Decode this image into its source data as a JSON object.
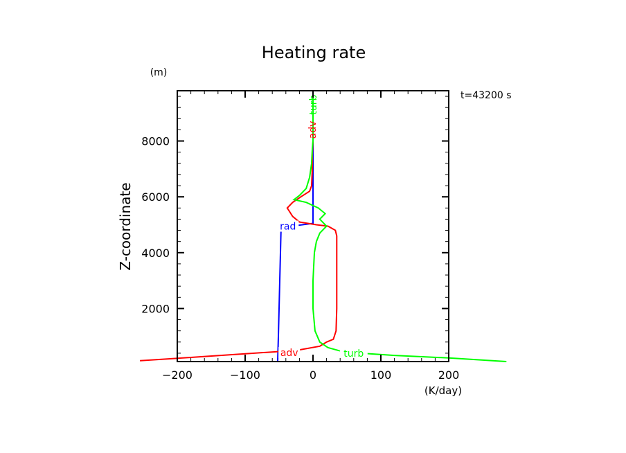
{
  "chart_data": {
    "type": "line",
    "title": "Heating rate",
    "xlabel": "(K/day)",
    "ylabel": "Z-coordinate",
    "yunit": "(m)",
    "annotation": "t=43200 s",
    "xlim": [
      -200,
      200
    ],
    "ylim": [
      100,
      9800
    ],
    "xticks": [
      -200,
      -100,
      0,
      100,
      200
    ],
    "xtick_labels": [
      "−200",
      "−100",
      "0",
      "100",
      "200"
    ],
    "yticks": [
      2000,
      4000,
      6000,
      8000
    ],
    "ytick_labels": [
      "2000",
      "4000",
      "6000",
      "8000"
    ],
    "grid": false,
    "series": [
      {
        "name": "rad",
        "label": "rad",
        "color": "#0000ff",
        "points": [
          [
            -52,
            100
          ],
          [
            -51,
            1000
          ],
          [
            -50,
            2000
          ],
          [
            -49,
            3000
          ],
          [
            -48,
            4000
          ],
          [
            -47,
            4900
          ],
          [
            0,
            5050
          ],
          [
            0,
            6000
          ],
          [
            0,
            7000
          ],
          [
            0,
            8000
          ],
          [
            0,
            9000
          ],
          [
            0,
            9800
          ]
        ],
        "label_at": [
          -37,
          4950
        ]
      },
      {
        "name": "adv",
        "label": "adv",
        "color": "#ff0000",
        "points": [
          [
            -255,
            130
          ],
          [
            -180,
            250
          ],
          [
            -100,
            380
          ],
          [
            -55,
            450
          ],
          [
            -20,
            520
          ],
          [
            10,
            650
          ],
          [
            20,
            800
          ],
          [
            30,
            900
          ],
          [
            34,
            1200
          ],
          [
            35,
            2000
          ],
          [
            35,
            3000
          ],
          [
            35,
            4000
          ],
          [
            35,
            4600
          ],
          [
            33,
            4800
          ],
          [
            22,
            4950
          ],
          [
            5,
            5000
          ],
          [
            -20,
            5100
          ],
          [
            -30,
            5300
          ],
          [
            -38,
            5600
          ],
          [
            -30,
            5800
          ],
          [
            -18,
            6000
          ],
          [
            -5,
            6200
          ],
          [
            -2,
            6400
          ],
          [
            -1,
            7000
          ],
          [
            -1,
            7500
          ],
          [
            0,
            8000
          ],
          [
            0,
            9000
          ],
          [
            0,
            9800
          ]
        ],
        "label_at": [
          -35,
          420
        ],
        "label2_at": [
          -1,
          8400
        ]
      },
      {
        "name": "turb",
        "label": "turb",
        "color": "#00ff00",
        "points": [
          [
            285,
            100
          ],
          [
            200,
            230
          ],
          [
            120,
            320
          ],
          [
            70,
            400
          ],
          [
            40,
            480
          ],
          [
            22,
            600
          ],
          [
            10,
            800
          ],
          [
            3,
            1200
          ],
          [
            0,
            2000
          ],
          [
            0,
            3000
          ],
          [
            2,
            4000
          ],
          [
            5,
            4400
          ],
          [
            10,
            4700
          ],
          [
            20,
            4950
          ],
          [
            10,
            5200
          ],
          [
            18,
            5400
          ],
          [
            8,
            5600
          ],
          [
            -10,
            5800
          ],
          [
            -28,
            5900
          ],
          [
            -20,
            6050
          ],
          [
            -10,
            6300
          ],
          [
            -5,
            6700
          ],
          [
            -2,
            7200
          ],
          [
            -1,
            7700
          ],
          [
            0,
            8000
          ],
          [
            0,
            9000
          ],
          [
            0,
            9800
          ]
        ],
        "label_at": [
          60,
          400
        ],
        "label2_at": [
          0,
          9300
        ]
      }
    ]
  }
}
